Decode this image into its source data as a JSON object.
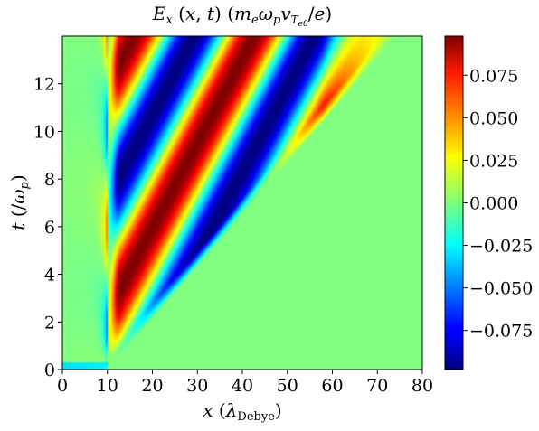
{
  "chart_data": {
    "type": "heatmap",
    "title": "E_x (x, t) (m_e ω_p v_T_e0 / e)",
    "xlabel": "x (λ_Debye)",
    "ylabel": "t (/ω_p)",
    "xlim": [
      0,
      80
    ],
    "ylim": [
      0,
      14
    ],
    "x_ticks": [
      "0",
      "10",
      "20",
      "30",
      "40",
      "50",
      "60",
      "70",
      "80"
    ],
    "y_ticks": [
      "0",
      "2",
      "4",
      "6",
      "8",
      "10",
      "12"
    ],
    "colorbar": {
      "colormap": "jet",
      "range": [
        -0.098,
        0.098
      ],
      "ticks": [
        "−0.075",
        "−0.050",
        "−0.025",
        "0.000",
        "0.025",
        "0.050",
        "0.075"
      ]
    },
    "field_description": {
      "source_x": 10,
      "max_amplitude": 0.098
    }
  }
}
